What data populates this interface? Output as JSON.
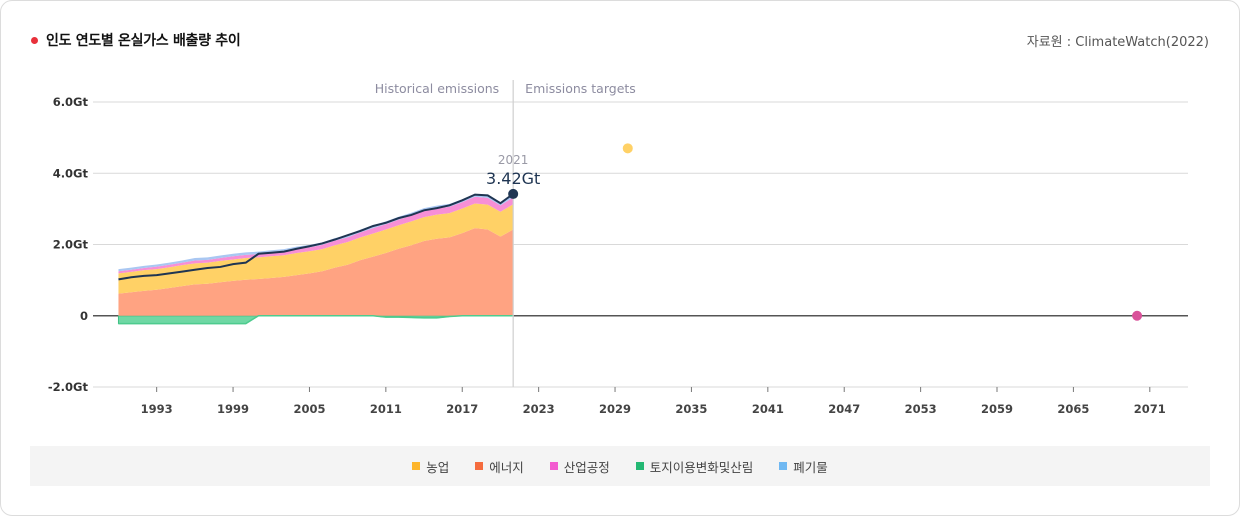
{
  "header": {
    "title": "인도 연도별 온실가스 배출량 추이",
    "source": "자료원 : ClimateWatch(2022)"
  },
  "colors": {
    "title_dot": "#e8303a",
    "agriculture": "#ffd166",
    "energy": "#ffa382",
    "industrial": "#f78fd6",
    "landuse": "#5fd49a",
    "waste": "#a9c7f2",
    "total_line": "#1f3552",
    "target_2030": "#ffd166",
    "target_2070": "#d9529a"
  },
  "chart_data": {
    "type": "area",
    "title": "인도 연도별 온실가스 배출량 추이",
    "ylim": [
      -2.0,
      6.0
    ],
    "yticks": [
      {
        "value": 6,
        "label": "6.0Gt"
      },
      {
        "value": 4,
        "label": "4.0Gt"
      },
      {
        "value": 2,
        "label": "2.0Gt"
      },
      {
        "value": 0,
        "label": "0"
      },
      {
        "value": -2,
        "label": "-2.0Gt"
      }
    ],
    "xlim": [
      1988,
      2074
    ],
    "xticks": [
      1993,
      1999,
      2005,
      2011,
      2017,
      2023,
      2029,
      2035,
      2041,
      2047,
      2053,
      2059,
      2065,
      2071
    ],
    "grid": true,
    "periods": {
      "historical": "Historical emissions",
      "targets": "Emissions targets",
      "divider_year": 2021
    },
    "years": [
      1990,
      1991,
      1992,
      1993,
      1994,
      1995,
      1996,
      1997,
      1998,
      1999,
      2000,
      2001,
      2002,
      2003,
      2004,
      2005,
      2006,
      2007,
      2008,
      2009,
      2010,
      2011,
      2012,
      2013,
      2014,
      2015,
      2016,
      2017,
      2018,
      2019,
      2020,
      2021
    ],
    "series": [
      {
        "key": "landuse",
        "name": "토지이용변화및산림",
        "values": [
          -0.22,
          -0.22,
          -0.22,
          -0.22,
          -0.22,
          -0.22,
          -0.22,
          -0.22,
          -0.22,
          -0.22,
          -0.22,
          0.0,
          0.0,
          0.0,
          0.0,
          0.0,
          0.0,
          0.0,
          0.0,
          0.0,
          0.0,
          -0.04,
          -0.04,
          -0.05,
          -0.06,
          -0.06,
          -0.02,
          0.0,
          0.0,
          0.0,
          0.0,
          0.0
        ]
      },
      {
        "key": "energy",
        "name": "에너지",
        "values": [
          0.62,
          0.66,
          0.7,
          0.73,
          0.78,
          0.83,
          0.88,
          0.9,
          0.94,
          0.98,
          1.01,
          1.03,
          1.06,
          1.09,
          1.14,
          1.19,
          1.25,
          1.35,
          1.43,
          1.56,
          1.66,
          1.76,
          1.88,
          1.98,
          2.1,
          2.16,
          2.2,
          2.32,
          2.46,
          2.42,
          2.22,
          2.42
        ]
      },
      {
        "key": "agriculture",
        "name": "농업",
        "values": [
          0.57,
          0.57,
          0.58,
          0.58,
          0.58,
          0.59,
          0.59,
          0.59,
          0.6,
          0.6,
          0.61,
          0.61,
          0.61,
          0.61,
          0.62,
          0.62,
          0.62,
          0.63,
          0.64,
          0.64,
          0.65,
          0.66,
          0.66,
          0.67,
          0.67,
          0.68,
          0.68,
          0.69,
          0.69,
          0.7,
          0.7,
          0.71
        ]
      },
      {
        "key": "industrial",
        "name": "산업공정",
        "values": [
          0.06,
          0.06,
          0.06,
          0.07,
          0.07,
          0.07,
          0.08,
          0.08,
          0.08,
          0.09,
          0.09,
          0.09,
          0.1,
          0.1,
          0.11,
          0.11,
          0.12,
          0.13,
          0.13,
          0.14,
          0.15,
          0.15,
          0.16,
          0.16,
          0.17,
          0.17,
          0.18,
          0.18,
          0.19,
          0.19,
          0.18,
          0.19
        ]
      },
      {
        "key": "waste",
        "name": "폐기물",
        "values": [
          0.06,
          0.06,
          0.06,
          0.06,
          0.06,
          0.06,
          0.07,
          0.07,
          0.07,
          0.07,
          0.07,
          0.07,
          0.07,
          0.07,
          0.07,
          0.07,
          0.07,
          0.07,
          0.07,
          0.08,
          0.08,
          0.08,
          0.08,
          0.08,
          0.08,
          0.08,
          0.08,
          0.08,
          0.08,
          0.08,
          0.08,
          0.08
        ]
      }
    ],
    "total": [
      1.02,
      1.08,
      1.12,
      1.14,
      1.19,
      1.24,
      1.29,
      1.34,
      1.37,
      1.45,
      1.49,
      1.74,
      1.77,
      1.8,
      1.88,
      1.95,
      2.03,
      2.14,
      2.26,
      2.38,
      2.52,
      2.61,
      2.74,
      2.83,
      2.96,
      3.02,
      3.1,
      3.24,
      3.4,
      3.38,
      3.16,
      3.42
    ],
    "highlight": {
      "year": "2021",
      "label": "3.42Gt",
      "value": 3.42
    },
    "targets": [
      {
        "year": 2030,
        "value": 4.7
      },
      {
        "year": 2070,
        "value": 0
      }
    ]
  },
  "legend": [
    {
      "key": "agriculture",
      "label": "농업",
      "color": "#fdb52b"
    },
    {
      "key": "energy",
      "label": "에너지",
      "color": "#f56c3e"
    },
    {
      "key": "industrial",
      "label": "산업공정",
      "color": "#f35bd0"
    },
    {
      "key": "landuse",
      "label": "토지이용변화및산림",
      "color": "#23b873"
    },
    {
      "key": "waste",
      "label": "폐기물",
      "color": "#6fb8f2"
    }
  ]
}
